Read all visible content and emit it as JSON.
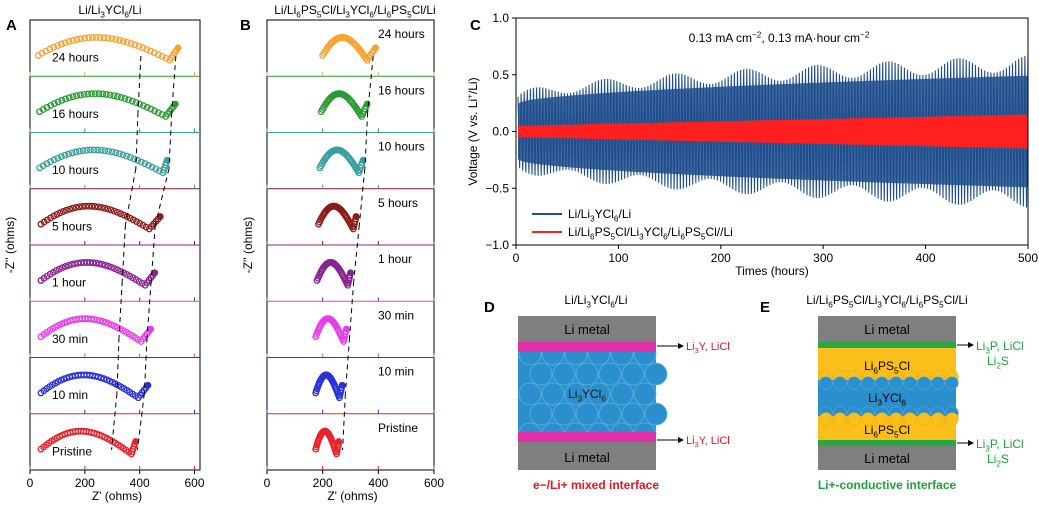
{
  "chart_data": [
    {
      "panel": "A",
      "type": "scatter",
      "title": "Li/Li3YCl6/Li",
      "title_parts": [
        "Li/Li",
        "3",
        "YCl",
        "6",
        "/Li"
      ],
      "xlabel": "Z' (ohms)",
      "ylabel": "-Z'' (ohms)",
      "xticks": [
        "0",
        "200",
        "400",
        "600"
      ],
      "xlim": [
        0,
        620
      ],
      "series": [
        {
          "name": "24 hours",
          "color": "#f7a234",
          "start": 30,
          "end": 510,
          "tail_end": 540
        },
        {
          "name": "16 hours",
          "color": "#2b9a36",
          "start": 35,
          "end": 495,
          "tail_end": 530
        },
        {
          "name": "10 hours",
          "color": "#3a9f9f",
          "start": 35,
          "end": 485,
          "tail_end": 500
        },
        {
          "name": "5 hours",
          "color": "#8b1a1a",
          "start": 40,
          "end": 435,
          "tail_end": 475
        },
        {
          "name": "1 hour",
          "color": "#8a2291",
          "start": 40,
          "end": 420,
          "tail_end": 455
        },
        {
          "name": "30 min",
          "color": "#e63fe6",
          "start": 40,
          "end": 405,
          "tail_end": 440
        },
        {
          "name": "10 min",
          "color": "#2a32d6",
          "start": 40,
          "end": 395,
          "tail_end": 430
        },
        {
          "name": "Pristine",
          "color": "#e8222a",
          "start": 40,
          "end": 370,
          "tail_end": 385
        }
      ]
    },
    {
      "panel": "B",
      "type": "scatter",
      "title": "Li/Li6PS5Cl/Li3YCl6/Li6PS5Cl/Li",
      "title_parts": [
        "Li/Li",
        "6",
        "PS",
        "5",
        "Cl/Li",
        "3",
        "YCl",
        "6",
        "/Li",
        "6",
        "PS",
        "5",
        "Cl/Li"
      ],
      "xlabel": "Z' (ohms)",
      "ylabel": "-Z'' (ohms)",
      "xticks": [
        "0",
        "200",
        "400",
        "600"
      ],
      "xlim": [
        0,
        600
      ],
      "series": [
        {
          "name": "24 hours",
          "color": "#f7a234",
          "start": 200,
          "end": 360,
          "tail_end": 390
        },
        {
          "name": "16 hours",
          "color": "#2b9a36",
          "start": 195,
          "end": 340,
          "tail_end": 360
        },
        {
          "name": "10 hours",
          "color": "#3a9f9f",
          "start": 190,
          "end": 330,
          "tail_end": 345
        },
        {
          "name": "5 hours",
          "color": "#8b1a1a",
          "start": 185,
          "end": 310,
          "tail_end": 320
        },
        {
          "name": "1 hour",
          "color": "#8a2291",
          "start": 180,
          "end": 290,
          "tail_end": 300
        },
        {
          "name": "30 min",
          "color": "#e63fe6",
          "start": 175,
          "end": 275,
          "tail_end": 285
        },
        {
          "name": "10 min",
          "color": "#2a32d6",
          "start": 175,
          "end": 260,
          "tail_end": 270
        },
        {
          "name": "Pristine",
          "color": "#e8222a",
          "start": 175,
          "end": 250,
          "tail_end": 258
        }
      ]
    },
    {
      "panel": "C",
      "type": "line",
      "annotation": "0.13 mA cm^-2, 0.13 mA·hour cm^-2",
      "annotation_parts": [
        "0.13 mA cm",
        "−2",
        ", 0.13 mA·hour cm",
        "−2"
      ],
      "xlabel": "Times (hours)",
      "ylabel": "Voltage (V vs. Li+/Li)",
      "ylabel_parts": [
        "Voltage (V vs. Li",
        "+",
        "/Li)"
      ],
      "xlim": [
        0,
        500
      ],
      "ylim": [
        -1.0,
        1.0
      ],
      "xticks": [
        "0",
        "100",
        "200",
        "300",
        "400",
        "500"
      ],
      "yticks": [
        "1.0",
        "0.5",
        "0.0",
        "−0.5",
        "−1.0"
      ],
      "series": [
        {
          "name": "Li/Li3YCl6/Li",
          "name_parts": [
            "Li/Li",
            "3",
            "YCl",
            "6",
            "/Li"
          ],
          "color": "#1f4e8c",
          "amplitude_start": 0.3,
          "amplitude_end": 0.6
        },
        {
          "name": "Li/Li6PS5Cl/Li3YCl6/Li6PS5Cl//Li",
          "name_parts": [
            "Li/Li",
            "6",
            "PS",
            "5",
            "Cl/Li",
            "3",
            "YCl",
            "6",
            "/Li",
            "6",
            "PS",
            "5",
            "Cl//Li"
          ],
          "color": "#ff1f1f",
          "amplitude_start": 0.05,
          "amplitude_end": 0.15
        }
      ]
    }
  ],
  "panel_labels": [
    "A",
    "B",
    "C",
    "D",
    "E"
  ],
  "diagram_d": {
    "title": "Li/Li3YCl6/Li",
    "title_parts": [
      "Li/Li",
      "3",
      "YCl",
      "6",
      "/Li"
    ],
    "top_layer": "Li metal",
    "middle_layer": "Li3YCl6",
    "middle_parts": [
      "Li",
      "3",
      "YCl",
      "6"
    ],
    "bottom_layer": "Li metal",
    "interface_top_label": "Li3Y, LiCl",
    "interface_bottom_label": "Li3Y, LiCl",
    "interface_label_parts": [
      "Li",
      "3",
      "Y, LiCl"
    ],
    "caption": "e−/Li+ mixed interface",
    "colors": {
      "metal": "#7f7f7f",
      "electrolyte": "#2b8fce",
      "interface": "#e02fa8",
      "caption": "#e0181f"
    }
  },
  "diagram_e": {
    "title": "Li/Li6PS5Cl/Li3YCl6/Li6PS5Cl/Li",
    "title_parts": [
      "Li/Li",
      "6",
      "PS",
      "5",
      "Cl/Li",
      "3",
      "YCl",
      "6",
      "/Li",
      "6",
      "PS",
      "5",
      "Cl/Li"
    ],
    "top_layer": "Li metal",
    "lpsc_top": "Li6PS5Cl",
    "middle_layer": "Li3YCl6",
    "lpsc_bottom": "Li6PS5Cl",
    "bottom_layer": "Li metal",
    "lpsc_parts": [
      "Li",
      "6",
      "PS",
      "5",
      "Cl"
    ],
    "middle_parts": [
      "Li",
      "3",
      "YCl",
      "6"
    ],
    "interface_line1": "Li3P, LiCl",
    "interface_line1_parts": [
      "Li",
      "3",
      "P, LiCl"
    ],
    "interface_line2": "Li2S",
    "interface_line2_parts": [
      "Li",
      "2",
      "S"
    ],
    "caption": "Li+-conductive interface",
    "colors": {
      "metal": "#7f7f7f",
      "electrolyte": "#2b8fce",
      "lpsc": "#fbbf1c",
      "interface": "#28a745",
      "caption": "#1ea33a"
    }
  }
}
